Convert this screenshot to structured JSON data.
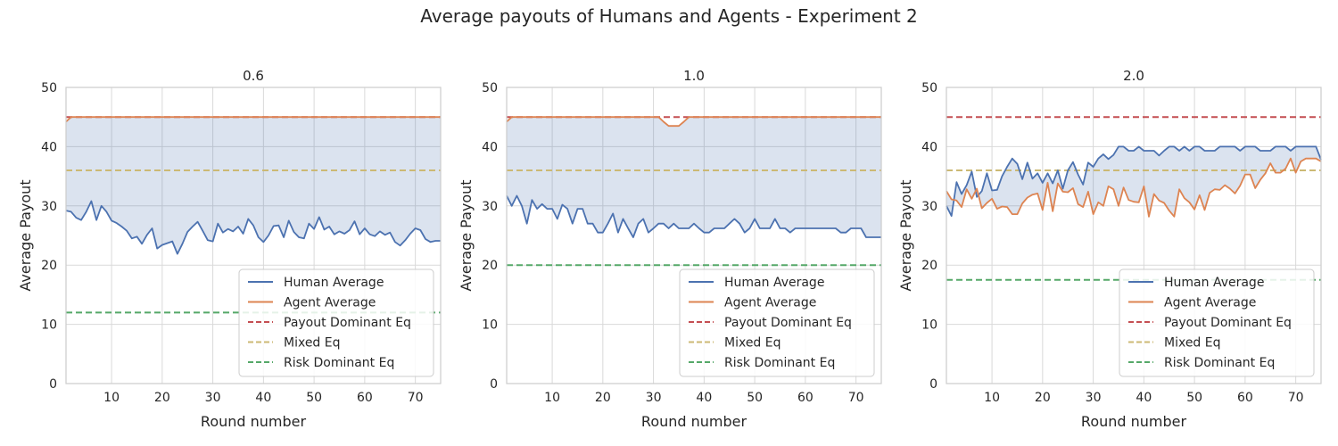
{
  "figure": {
    "suptitle": "Average payouts of Humans and Agents - Experiment 2"
  },
  "colors": {
    "human": "#4c72b0",
    "agent": "#dd8452",
    "payout_eq": "#c44e52",
    "mixed_eq": "#ccb974",
    "risk_eq": "#55a868",
    "fill": "#4c72b0"
  },
  "chart_data": [
    {
      "type": "line",
      "title": "0.6",
      "xlabel": "Round number",
      "ylabel": "Average Payout",
      "xlim": [
        1,
        75
      ],
      "ylim": [
        0,
        50
      ],
      "xticks": [
        10,
        20,
        30,
        40,
        50,
        60,
        70
      ],
      "yticks": [
        0,
        10,
        20,
        30,
        40,
        50
      ],
      "grid": true,
      "legend_position": "lower-right",
      "x": [
        1,
        2,
        3,
        4,
        5,
        6,
        7,
        8,
        9,
        10,
        11,
        12,
        13,
        14,
        15,
        16,
        17,
        18,
        19,
        20,
        21,
        22,
        23,
        24,
        25,
        26,
        27,
        28,
        29,
        30,
        31,
        32,
        33,
        34,
        35,
        36,
        37,
        38,
        39,
        40,
        41,
        42,
        43,
        44,
        45,
        46,
        47,
        48,
        49,
        50,
        51,
        52,
        53,
        54,
        55,
        56,
        57,
        58,
        59,
        60,
        61,
        62,
        63,
        64,
        65,
        66,
        67,
        68,
        69,
        70,
        71,
        72,
        73,
        74,
        75
      ],
      "series": [
        {
          "name": "Human Average",
          "style": "solid",
          "color": "#4c72b0",
          "values": [
            29.2,
            29.0,
            28.0,
            27.6,
            29.0,
            30.8,
            27.6,
            30.0,
            29.0,
            27.5,
            27.1,
            26.5,
            25.8,
            24.5,
            24.8,
            23.6,
            25.1,
            26.2,
            22.8,
            23.4,
            23.7,
            24.0,
            21.9,
            23.6,
            25.6,
            26.5,
            27.3,
            25.8,
            24.2,
            24.0,
            27.0,
            25.5,
            26.1,
            25.7,
            26.5,
            25.3,
            27.8,
            26.7,
            24.7,
            23.9,
            25.0,
            26.6,
            26.7,
            24.7,
            27.5,
            25.6,
            24.7,
            24.5,
            27.0,
            26.1,
            28.1,
            26.0,
            26.5,
            25.2,
            25.7,
            25.3,
            25.9,
            27.4,
            25.2,
            26.2,
            25.2,
            24.9,
            25.7,
            25.1,
            25.5,
            23.9,
            23.3,
            24.2,
            25.3,
            26.2,
            25.9,
            24.4,
            23.9,
            24.1,
            24.1
          ]
        },
        {
          "name": "Agent Average",
          "style": "solid",
          "color": "#dd8452",
          "values": [
            44.2,
            45.0,
            45.0,
            45.0,
            45.0,
            45.0,
            45.0,
            45.0,
            45.0,
            45.0,
            45.0,
            45.0,
            45.0,
            45.0,
            45.0,
            45.0,
            45.0,
            45.0,
            45.0,
            45.0,
            45.0,
            45.0,
            45.0,
            45.0,
            45.0,
            45.0,
            45.0,
            45.0,
            45.0,
            45.0,
            45.0,
            45.0,
            45.0,
            45.0,
            45.0,
            45.0,
            45.0,
            45.0,
            45.0,
            45.0,
            45.0,
            45.0,
            45.0,
            45.0,
            45.0,
            45.0,
            45.0,
            45.0,
            45.0,
            45.0,
            45.0,
            45.0,
            45.0,
            45.0,
            45.0,
            45.0,
            45.0,
            45.0,
            45.0,
            45.0,
            45.0,
            45.0,
            45.0,
            45.0,
            45.0,
            45.0,
            45.0,
            45.0,
            45.0,
            45.0,
            45.0,
            45.0,
            45.0,
            45.0,
            45.0
          ]
        },
        {
          "name": "Payout Dominant Eq",
          "style": "dashed",
          "color": "#c44e52",
          "constant": 45
        },
        {
          "name": "Mixed Eq",
          "style": "dashed",
          "color": "#ccb974",
          "constant": 36
        },
        {
          "name": "Risk Dominant Eq",
          "style": "dashed",
          "color": "#55a868",
          "constant": 12
        }
      ]
    },
    {
      "type": "line",
      "title": "1.0",
      "xlabel": "Round number",
      "ylabel": "Average Payout",
      "xlim": [
        1,
        75
      ],
      "ylim": [
        0,
        50
      ],
      "xticks": [
        10,
        20,
        30,
        40,
        50,
        60,
        70
      ],
      "yticks": [
        0,
        10,
        20,
        30,
        40,
        50
      ],
      "grid": true,
      "legend_position": "lower-right",
      "x": [
        1,
        2,
        3,
        4,
        5,
        6,
        7,
        8,
        9,
        10,
        11,
        12,
        13,
        14,
        15,
        16,
        17,
        18,
        19,
        20,
        21,
        22,
        23,
        24,
        25,
        26,
        27,
        28,
        29,
        30,
        31,
        32,
        33,
        34,
        35,
        36,
        37,
        38,
        39,
        40,
        41,
        42,
        43,
        44,
        45,
        46,
        47,
        48,
        49,
        50,
        51,
        52,
        53,
        54,
        55,
        56,
        57,
        58,
        59,
        60,
        61,
        62,
        63,
        64,
        65,
        66,
        67,
        68,
        69,
        70,
        71,
        72,
        73,
        74,
        75
      ],
      "series": [
        {
          "name": "Human Average",
          "style": "solid",
          "color": "#4c72b0",
          "values": [
            31.7,
            30.0,
            31.7,
            30.0,
            27.0,
            31.0,
            29.5,
            30.3,
            29.5,
            29.5,
            27.8,
            30.2,
            29.5,
            27.0,
            29.5,
            29.5,
            27.0,
            27.0,
            25.5,
            25.5,
            27.0,
            28.7,
            25.5,
            27.8,
            26.2,
            24.7,
            27.0,
            27.8,
            25.5,
            26.2,
            27.0,
            27.0,
            26.2,
            27.0,
            26.2,
            26.2,
            26.2,
            27.0,
            26.2,
            25.5,
            25.5,
            26.2,
            26.2,
            26.2,
            27.0,
            27.8,
            27.0,
            25.5,
            26.2,
            27.8,
            26.2,
            26.2,
            26.2,
            27.8,
            26.2,
            26.2,
            25.5,
            26.2,
            26.2,
            26.2,
            26.2,
            26.2,
            26.2,
            26.2,
            26.2,
            26.2,
            25.5,
            25.5,
            26.2,
            26.2,
            26.2,
            24.7,
            24.7,
            24.7,
            24.7
          ]
        },
        {
          "name": "Agent Average",
          "style": "solid",
          "color": "#dd8452",
          "values": [
            44.2,
            45.0,
            45.0,
            45.0,
            45.0,
            45.0,
            45.0,
            45.0,
            45.0,
            45.0,
            45.0,
            45.0,
            45.0,
            45.0,
            45.0,
            45.0,
            45.0,
            45.0,
            45.0,
            45.0,
            45.0,
            45.0,
            45.0,
            45.0,
            45.0,
            45.0,
            45.0,
            45.0,
            45.0,
            45.0,
            45.0,
            44.2,
            43.5,
            43.5,
            43.5,
            44.2,
            45.0,
            45.0,
            45.0,
            45.0,
            45.0,
            45.0,
            45.0,
            45.0,
            45.0,
            45.0,
            45.0,
            45.0,
            45.0,
            45.0,
            45.0,
            45.0,
            45.0,
            45.0,
            45.0,
            45.0,
            45.0,
            45.0,
            45.0,
            45.0,
            45.0,
            45.0,
            45.0,
            45.0,
            45.0,
            45.0,
            45.0,
            45.0,
            45.0,
            45.0,
            45.0,
            45.0,
            45.0,
            45.0,
            45.0
          ]
        },
        {
          "name": "Payout Dominant Eq",
          "style": "dashed",
          "color": "#c44e52",
          "constant": 45
        },
        {
          "name": "Mixed Eq",
          "style": "dashed",
          "color": "#ccb974",
          "constant": 36
        },
        {
          "name": "Risk Dominant Eq",
          "style": "dashed",
          "color": "#55a868",
          "constant": 20
        }
      ]
    },
    {
      "type": "line",
      "title": "2.0",
      "xlabel": "Round number",
      "ylabel": "Average Payout",
      "xlim": [
        1,
        75
      ],
      "ylim": [
        0,
        50
      ],
      "xticks": [
        10,
        20,
        30,
        40,
        50,
        60,
        70
      ],
      "yticks": [
        0,
        10,
        20,
        30,
        40,
        50
      ],
      "grid": true,
      "legend_position": "lower-right",
      "x": [
        1,
        2,
        3,
        4,
        5,
        6,
        7,
        8,
        9,
        10,
        11,
        12,
        13,
        14,
        15,
        16,
        17,
        18,
        19,
        20,
        21,
        22,
        23,
        24,
        25,
        26,
        27,
        28,
        29,
        30,
        31,
        32,
        33,
        34,
        35,
        36,
        37,
        38,
        39,
        40,
        41,
        42,
        43,
        44,
        45,
        46,
        47,
        48,
        49,
        50,
        51,
        52,
        53,
        54,
        55,
        56,
        57,
        58,
        59,
        60,
        61,
        62,
        63,
        64,
        65,
        66,
        67,
        68,
        69,
        70,
        71,
        72,
        73,
        74,
        75
      ],
      "series": [
        {
          "name": "Human Average",
          "style": "solid",
          "color": "#4c72b0",
          "values": [
            30.0,
            28.3,
            34.0,
            32.0,
            33.5,
            35.8,
            31.5,
            32.5,
            35.5,
            32.6,
            32.7,
            35.0,
            36.6,
            38.0,
            37.1,
            34.5,
            37.3,
            34.6,
            35.5,
            33.9,
            35.5,
            33.8,
            36.0,
            32.9,
            36.0,
            37.4,
            35.3,
            33.6,
            37.3,
            36.6,
            38.0,
            38.7,
            37.9,
            38.6,
            40.0,
            40.0,
            39.3,
            39.3,
            40.0,
            39.3,
            39.3,
            39.3,
            38.5,
            39.3,
            40.0,
            40.0,
            39.3,
            40.0,
            39.3,
            40.0,
            40.0,
            39.3,
            39.3,
            39.3,
            40.0,
            40.0,
            40.0,
            40.0,
            39.3,
            40.0,
            40.0,
            40.0,
            39.3,
            39.3,
            39.3,
            40.0,
            40.0,
            40.0,
            39.3,
            40.0,
            40.0,
            40.0,
            40.0,
            40.0,
            37.8
          ]
        },
        {
          "name": "Agent Average",
          "style": "solid",
          "color": "#dd8452",
          "values": [
            32.5,
            31.1,
            30.9,
            29.8,
            32.8,
            31.2,
            32.9,
            29.6,
            30.5,
            31.2,
            29.5,
            29.9,
            29.8,
            28.6,
            28.6,
            30.4,
            31.4,
            31.9,
            32.1,
            29.3,
            33.9,
            29.1,
            33.8,
            32.4,
            32.3,
            33.0,
            30.3,
            29.8,
            32.4,
            28.6,
            30.6,
            30.0,
            33.3,
            32.8,
            30.0,
            33.1,
            31.0,
            30.7,
            30.6,
            33.3,
            28.2,
            32.0,
            30.9,
            30.5,
            29.2,
            28.2,
            32.8,
            31.3,
            30.6,
            29.4,
            31.8,
            29.3,
            32.2,
            32.8,
            32.7,
            33.5,
            32.9,
            32.1,
            33.4,
            35.3,
            35.3,
            33.0,
            34.4,
            35.5,
            37.2,
            35.6,
            35.6,
            36.3,
            38.0,
            35.6,
            37.5,
            38.0,
            38.0,
            38.0,
            37.5
          ]
        },
        {
          "name": "Payout Dominant Eq",
          "style": "dashed",
          "color": "#c44e52",
          "constant": 45
        },
        {
          "name": "Mixed Eq",
          "style": "dashed",
          "color": "#ccb974",
          "constant": 36
        },
        {
          "name": "Risk Dominant Eq",
          "style": "dashed",
          "color": "#55a868",
          "constant": 17.5
        }
      ]
    }
  ]
}
